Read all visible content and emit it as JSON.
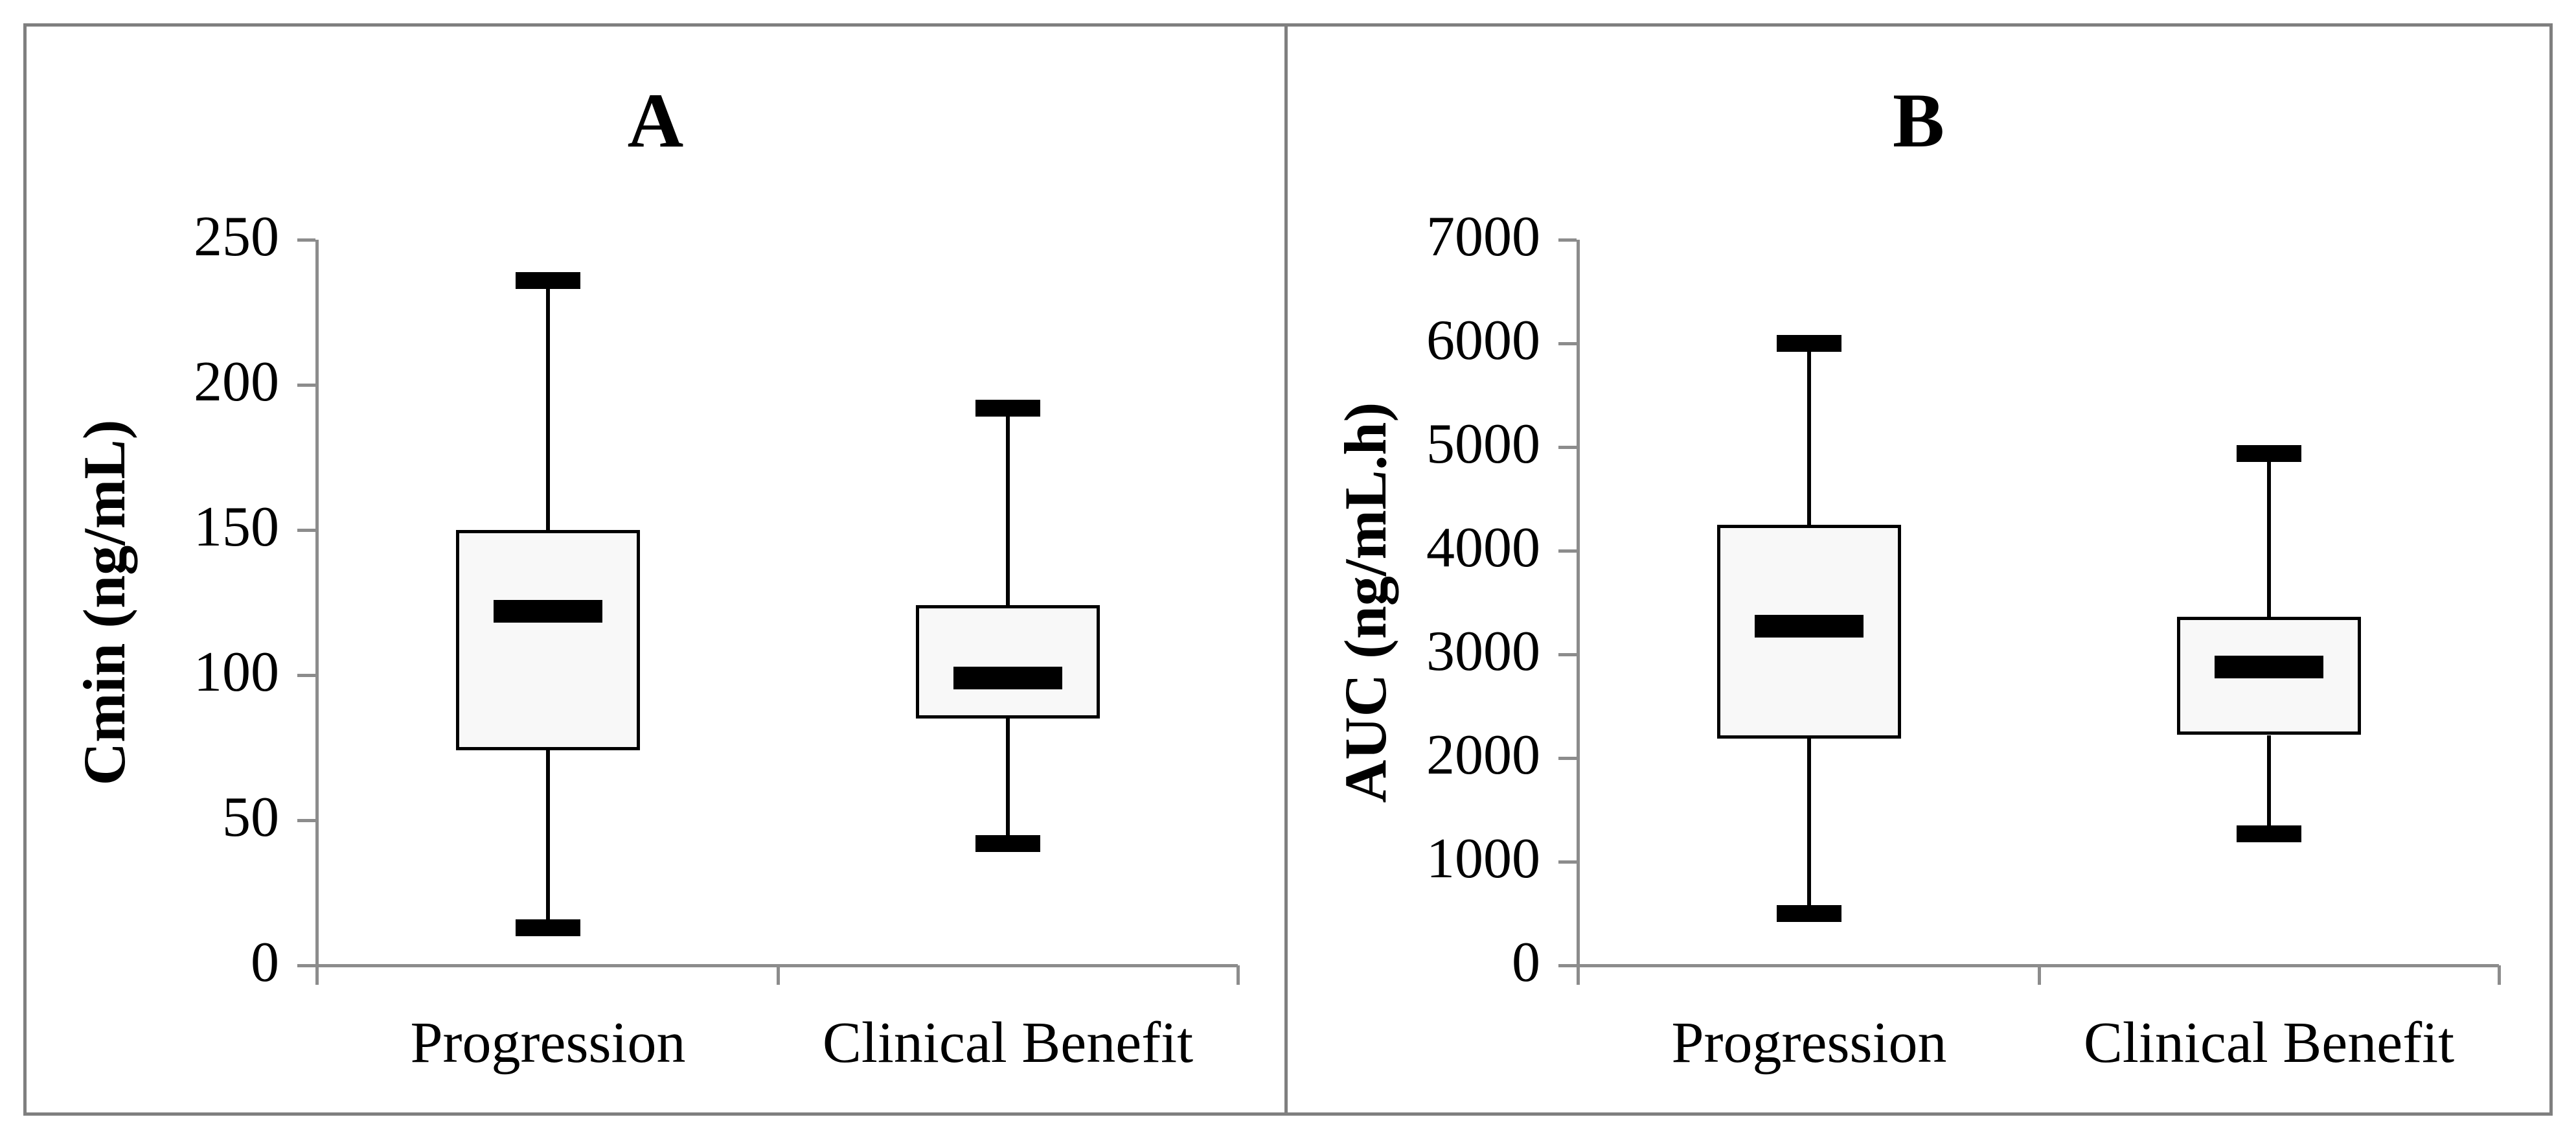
{
  "figure": {
    "background": "#ffffff",
    "frame_color": "#7f7f7f",
    "axis_color": "#8c8c8c",
    "box_fill": "#f8f8f8",
    "box_line": "#000000",
    "text_color": "#000000"
  },
  "chart_data": [
    {
      "type": "boxplot",
      "title": "A",
      "ylabel": "Cmin (ng/mL)",
      "xlabel": "",
      "categories": [
        "Progression",
        "Clinical Benefit"
      ],
      "ylim": [
        0,
        250
      ],
      "yticks": [
        0,
        50,
        100,
        150,
        200,
        250
      ],
      "ytick_labels": [
        "0",
        "50",
        "100",
        "150",
        "200",
        "250"
      ],
      "grid": false,
      "legend": null,
      "series": [
        {
          "name": "Progression",
          "whisker_low": 13,
          "q1": 74,
          "median": 122,
          "q3": 150,
          "whisker_high": 236
        },
        {
          "name": "Clinical Benefit",
          "whisker_low": 42,
          "q1": 85,
          "median": 99,
          "q3": 124,
          "whisker_high": 192
        }
      ]
    },
    {
      "type": "boxplot",
      "title": "B",
      "ylabel": "AUC (ng/mL.h)",
      "xlabel": "",
      "categories": [
        "Progression",
        "Clinical Benefit"
      ],
      "ylim": [
        0,
        7000
      ],
      "yticks": [
        0,
        1000,
        2000,
        3000,
        4000,
        5000,
        6000,
        7000
      ],
      "ytick_labels": [
        "0",
        "1000",
        "2000",
        "3000",
        "4000",
        "5000",
        "6000",
        "7000"
      ],
      "grid": false,
      "legend": null,
      "series": [
        {
          "name": "Progression",
          "whisker_low": 500,
          "q1": 2190,
          "median": 3270,
          "q3": 4250,
          "whisker_high": 6000
        },
        {
          "name": "Clinical Benefit",
          "whisker_low": 1270,
          "q1": 2220,
          "median": 2880,
          "q3": 3360,
          "whisker_high": 4940
        }
      ]
    }
  ]
}
